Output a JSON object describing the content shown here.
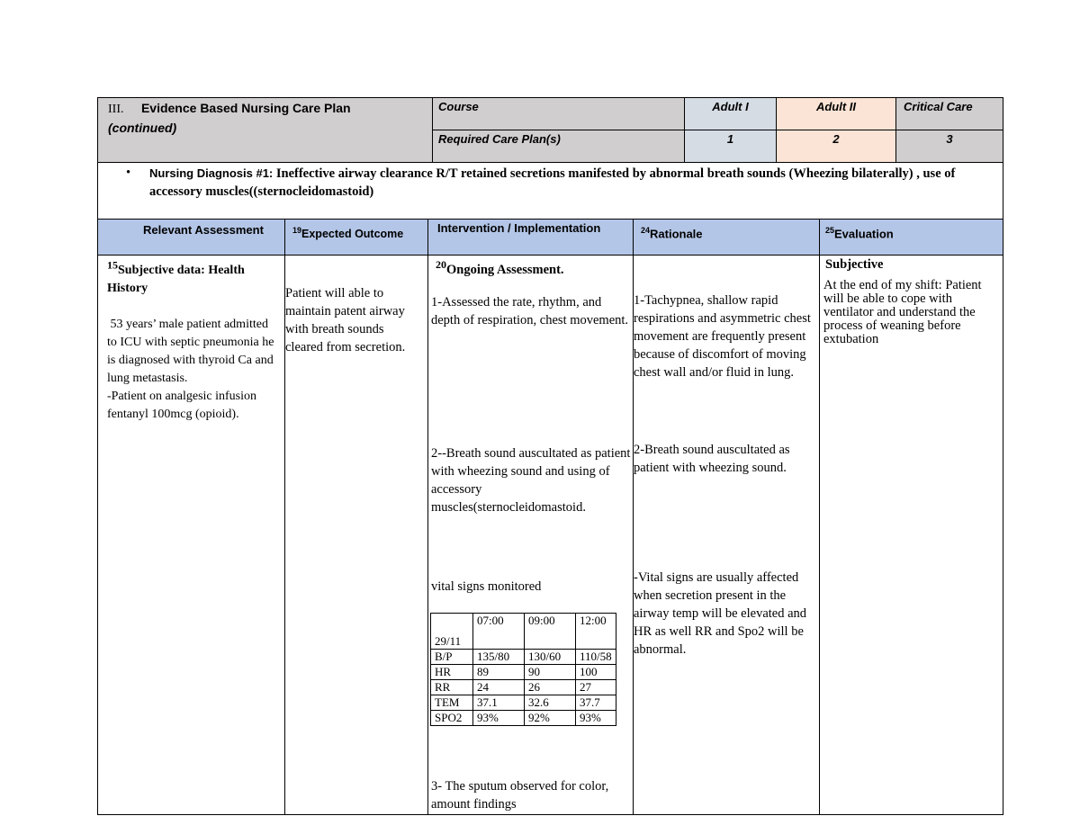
{
  "header": {
    "section": "III.",
    "title": "Evidence Based Nursing Care Plan",
    "continued": "(continued)",
    "course_label": "Course",
    "required_label": "Required Care Plan(s)",
    "courses": [
      {
        "name": "Adult I",
        "required": "1",
        "color": "#d5dce4"
      },
      {
        "name": "Adult II",
        "required": "2",
        "color": "#fbe4d5"
      },
      {
        "name": "Critical Care",
        "required": "3",
        "color": "#d0cece"
      }
    ]
  },
  "diagnosis": {
    "label": "Nursing Diagnosis #1:",
    "text": "Ineffective airway clearance R/T retained secretions manifested by abnormal breath sounds (Wheezing bilaterally) , use of accessory muscles((sternocleidomastoid)"
  },
  "columns": [
    {
      "num": "",
      "label": "Relevant Assessment"
    },
    {
      "num": "19",
      "label": "Expected Outcome"
    },
    {
      "num": "",
      "label": "Intervention / Implementation"
    },
    {
      "num": "24",
      "label": "Rationale"
    },
    {
      "num": "25",
      "label": "Evaluation"
    }
  ],
  "assessment": {
    "num": "15",
    "title": "Subjective data: Health History",
    "body": "53 years’ male patient admitted to ICU with septic pneumonia he is diagnosed with thyroid Ca and lung metastasis.",
    "body2": "-Patient on analgesic infusion fentanyl 100mcg (opioid)."
  },
  "outcome": "Patient will able to maintain patent airway with breath sounds cleared from secretion.",
  "intervention": {
    "num": "20",
    "title": "Ongoing Assessment",
    "i1": "1-Assessed the rate, rhythm, and depth of respiration, chest movement.",
    "i2": "2--Breath sound auscultated as patient with wheezing sound and using of accessory muscles(sternocleidomastoid.",
    "i3": "vital signs monitored",
    "i4": "3- The sputum observed for color, amount findings"
  },
  "vitals": {
    "date": "29/11",
    "times": [
      "07:00",
      "09:00",
      "12:00"
    ],
    "rows": [
      {
        "label": "B/P",
        "values": [
          "135/80",
          "130/60",
          "110/58"
        ]
      },
      {
        "label": "HR",
        "values": [
          "89",
          "90",
          "100"
        ]
      },
      {
        "label": "RR",
        "values": [
          "24",
          "26",
          "27"
        ]
      },
      {
        "label": "TEM",
        "values": [
          "37.1",
          "32.6",
          "37.7"
        ]
      },
      {
        "label": "SPO2",
        "values": [
          "93%",
          "92%",
          "93%"
        ]
      }
    ]
  },
  "rationale": {
    "r1": "1-Tachypnea, shallow rapid respirations and asymmetric chest movement are frequently present because of discomfort of moving chest wall and/or fluid in lung.",
    "r2": "2-Breath sound auscultated as patient with wheezing sound.",
    "r3": "-Vital signs are usually affected when secretion present in the airway temp will be elevated and HR as well RR and Spo2 will be abnormal."
  },
  "evaluation": {
    "title": "Subjective",
    "body": "At the end of my shift: Patient will be able to cope with ventilator and understand the process of weaning before extubation"
  }
}
